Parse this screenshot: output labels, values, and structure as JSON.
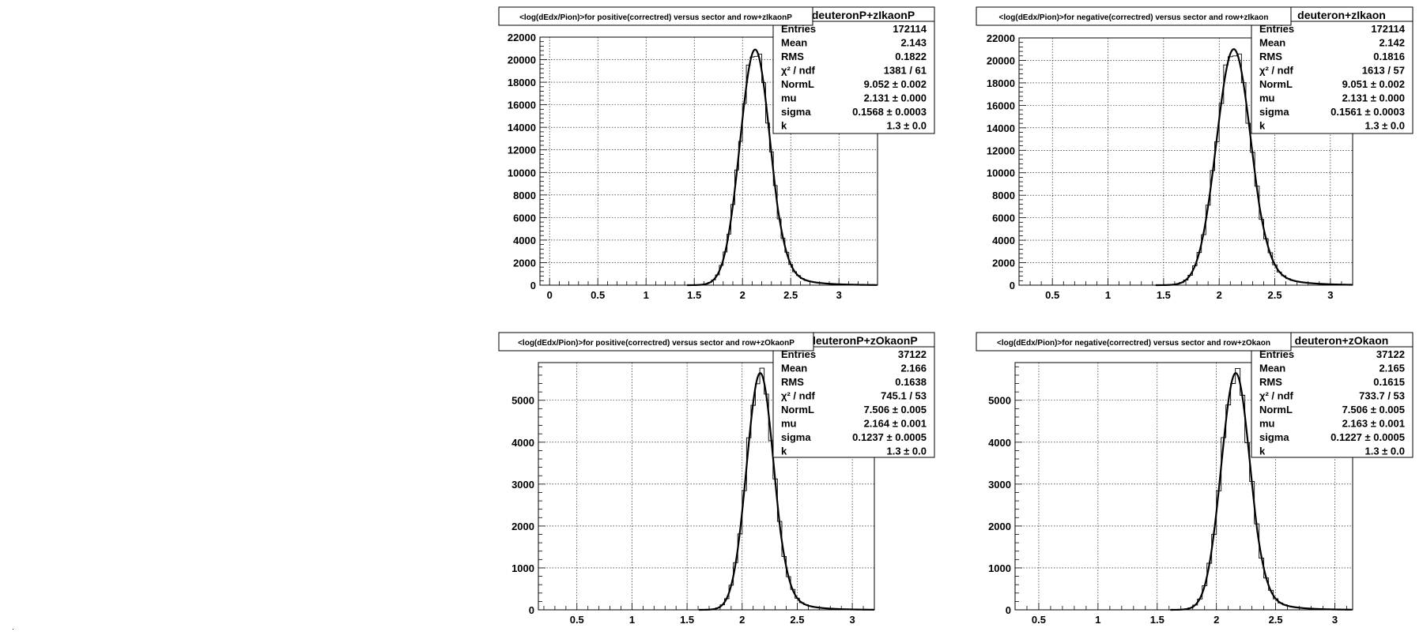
{
  "chart_data": [
    {
      "type": "histogram",
      "title": "<log(dEdx/Pion)>for positive(correctred) versus sector and row+zIkaonP",
      "stats": {
        "name": "deuteronP+zIkaonP",
        "rows": [
          [
            "Entries",
            "172114"
          ],
          [
            "Mean",
            "2.143"
          ],
          [
            "RMS",
            "0.1822"
          ],
          [
            "χ² / ndf",
            "1381 / 61"
          ],
          [
            "NormL",
            "9.052 ± 0.002"
          ],
          [
            "mu",
            "2.131 ± 0.000"
          ],
          [
            "sigma",
            "0.1568 ± 0.0003"
          ],
          [
            "k",
            "1.3 ± 0.0"
          ]
        ]
      },
      "xlim": [
        -0.1,
        3.4
      ],
      "ylim": [
        0,
        22000
      ],
      "xticks": [
        0,
        0.5,
        1,
        1.5,
        2,
        2.5,
        3
      ],
      "xtick_labels": [
        "0",
        "0.5",
        "1",
        "1.5",
        "2",
        "2.5",
        "3"
      ],
      "yticks": [
        0,
        2000,
        4000,
        6000,
        8000,
        10000,
        12000,
        14000,
        16000,
        18000,
        20000,
        22000
      ],
      "ytick_labels": [
        "0",
        "2000",
        "4000",
        "6000",
        "8000",
        "10000",
        "12000",
        "14000",
        "16000",
        "18000",
        "20000",
        "22000"
      ],
      "peak": 20900,
      "mu": 2.131,
      "sigma": 0.1568,
      "grid": true
    },
    {
      "type": "histogram",
      "title": "<log(dEdx/Pion)>for negative(correctred) versus sector and row+zIkaon",
      "stats": {
        "name": "deuteron+zIkaon",
        "rows": [
          [
            "Entries",
            "172114"
          ],
          [
            "Mean",
            "2.142"
          ],
          [
            "RMS",
            "0.1816"
          ],
          [
            "χ² / ndf",
            "1613 / 57"
          ],
          [
            "NormL",
            "9.051 ± 0.002"
          ],
          [
            "mu",
            "2.131 ± 0.000"
          ],
          [
            "sigma",
            "0.1561 ± 0.0003"
          ],
          [
            "k",
            "1.3 ± 0.0"
          ]
        ]
      },
      "xlim": [
        0.2,
        3.2
      ],
      "ylim": [
        0,
        22000
      ],
      "xticks": [
        0.5,
        1,
        1.5,
        2,
        2.5,
        3
      ],
      "xtick_labels": [
        "0.5",
        "1",
        "1.5",
        "2",
        "2.5",
        "3"
      ],
      "yticks": [
        0,
        2000,
        4000,
        6000,
        8000,
        10000,
        12000,
        14000,
        16000,
        18000,
        20000,
        22000
      ],
      "ytick_labels": [
        "0",
        "2000",
        "4000",
        "6000",
        "8000",
        "10000",
        "12000",
        "14000",
        "16000",
        "18000",
        "20000",
        "22000"
      ],
      "peak": 21000,
      "mu": 2.131,
      "sigma": 0.1561,
      "grid": true
    },
    {
      "type": "histogram",
      "title": "<log(dEdx/Pion)>for positive(correctred) versus sector and row+zOkaonP",
      "stats": {
        "name": "deuteronP+zOkaonP",
        "rows": [
          [
            "Entries",
            "37122"
          ],
          [
            "Mean",
            "2.166"
          ],
          [
            "RMS",
            "0.1638"
          ],
          [
            "χ² / ndf",
            "745.1 / 53"
          ],
          [
            "NormL",
            "7.506 ± 0.005"
          ],
          [
            "mu",
            "2.164 ± 0.001"
          ],
          [
            "sigma",
            "0.1237 ± 0.0005"
          ],
          [
            "k",
            "1.3 ± 0.0"
          ]
        ]
      },
      "xlim": [
        0.15,
        3.2
      ],
      "ylim": [
        0,
        5900
      ],
      "xticks": [
        0.5,
        1,
        1.5,
        2,
        2.5,
        3
      ],
      "xtick_labels": [
        "0.5",
        "1",
        "1.5",
        "2",
        "2.5",
        "3"
      ],
      "yticks": [
        0,
        1000,
        2000,
        3000,
        4000,
        5000
      ],
      "ytick_labels": [
        "0",
        "1000",
        "2000",
        "3000",
        "4000",
        "5000"
      ],
      "peak": 5650,
      "mu": 2.164,
      "sigma": 0.1237,
      "grid": true
    },
    {
      "type": "histogram",
      "title": "<log(dEdx/Pion)>for negative(correctred) versus sector and row+zOkaon",
      "stats": {
        "name": "deuteron+zOkaon",
        "rows": [
          [
            "Entries",
            "37122"
          ],
          [
            "Mean",
            "2.165"
          ],
          [
            "RMS",
            "0.1615"
          ],
          [
            "χ² / ndf",
            "733.7 / 53"
          ],
          [
            "NormL",
            "7.506 ± 0.005"
          ],
          [
            "mu",
            "2.163 ± 0.001"
          ],
          [
            "sigma",
            "0.1227 ± 0.0005"
          ],
          [
            "k",
            "1.3 ± 0.0"
          ]
        ]
      },
      "xlim": [
        0.3,
        3.15
      ],
      "ylim": [
        0,
        5900
      ],
      "xticks": [
        0.5,
        1,
        1.5,
        2,
        2.5,
        3
      ],
      "xtick_labels": [
        "0.5",
        "1",
        "1.5",
        "2",
        "2.5",
        "3"
      ],
      "yticks": [
        0,
        1000,
        2000,
        3000,
        4000,
        5000
      ],
      "ytick_labels": [
        "0",
        "1000",
        "2000",
        "3000",
        "4000",
        "5000"
      ],
      "peak": 5650,
      "mu": 2.163,
      "sigma": 0.1227,
      "grid": true
    }
  ]
}
